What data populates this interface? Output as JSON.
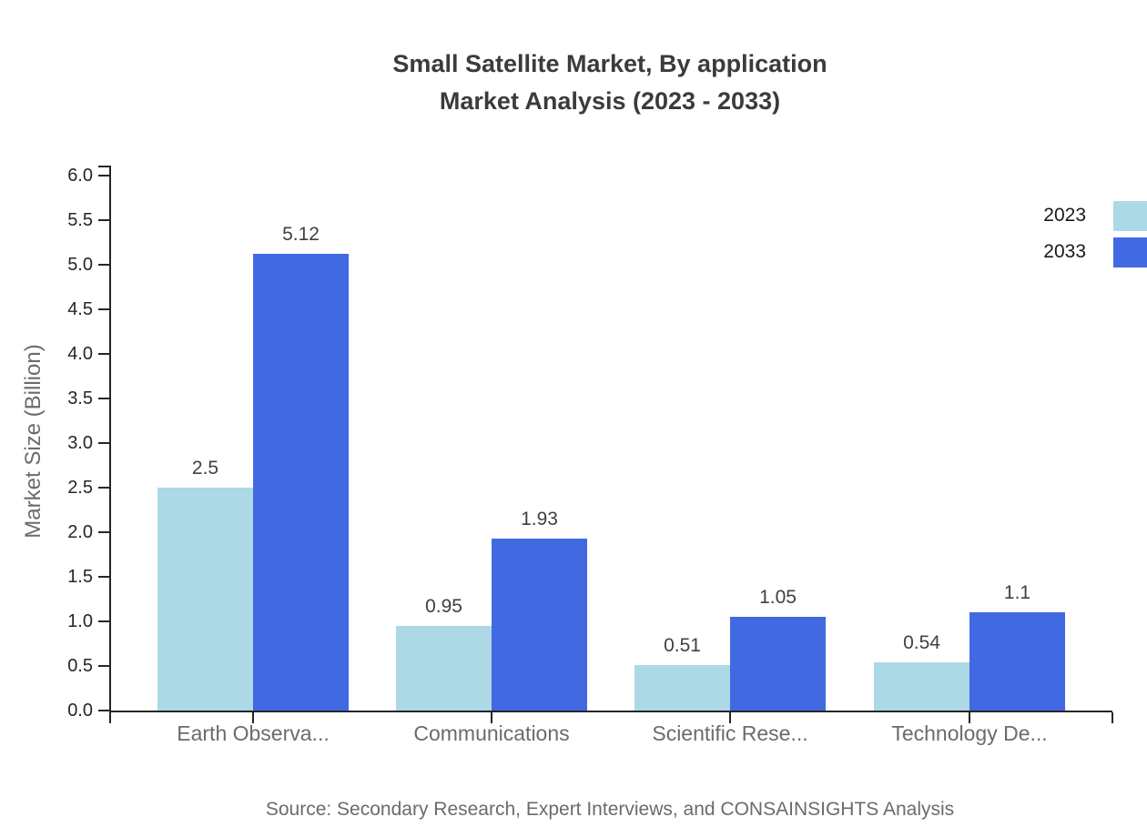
{
  "title": {
    "line1": "Small Satellite Market, By application",
    "line2": "Market Analysis (2023 - 2033)"
  },
  "y_axis": {
    "label": "Market Size (Billion)",
    "tick_labels": [
      "0.0",
      "0.5",
      "1.0",
      "1.5",
      "2.0",
      "2.5",
      "3.0",
      "3.5",
      "4.0",
      "4.5",
      "5.0",
      "5.5",
      "6.0"
    ]
  },
  "legend": {
    "items": [
      {
        "label": "2023",
        "color": "#add8e6"
      },
      {
        "label": "2033",
        "color": "#4169e1"
      }
    ]
  },
  "source": {
    "text": "Source: Secondary Research, Expert Interviews, and CONSAINSIGHTS Analysis"
  },
  "chart_data": {
    "type": "bar",
    "title": "Small Satellite Market, By application Market Analysis (2023 - 2033)",
    "categories": [
      "Earth Observa...",
      "Communications",
      "Scientific Rese...",
      "Technology De..."
    ],
    "series": [
      {
        "name": "2023",
        "color": "#add8e6",
        "values": [
          2.5,
          0.95,
          0.51,
          0.54
        ],
        "labels": [
          "2.5",
          "0.95",
          "0.51",
          "0.54"
        ]
      },
      {
        "name": "2033",
        "color": "#4169e1",
        "values": [
          5.12,
          1.93,
          1.05,
          1.1
        ],
        "labels": [
          "5.12",
          "1.93",
          "1.05",
          "1.1"
        ]
      }
    ],
    "xlabel": "",
    "ylabel": "Market Size (Billion)",
    "ylim": [
      0,
      6.0
    ],
    "ytick_step": 0.5,
    "grid": false,
    "legend_position": "top-right",
    "value_labels_shown": true
  }
}
